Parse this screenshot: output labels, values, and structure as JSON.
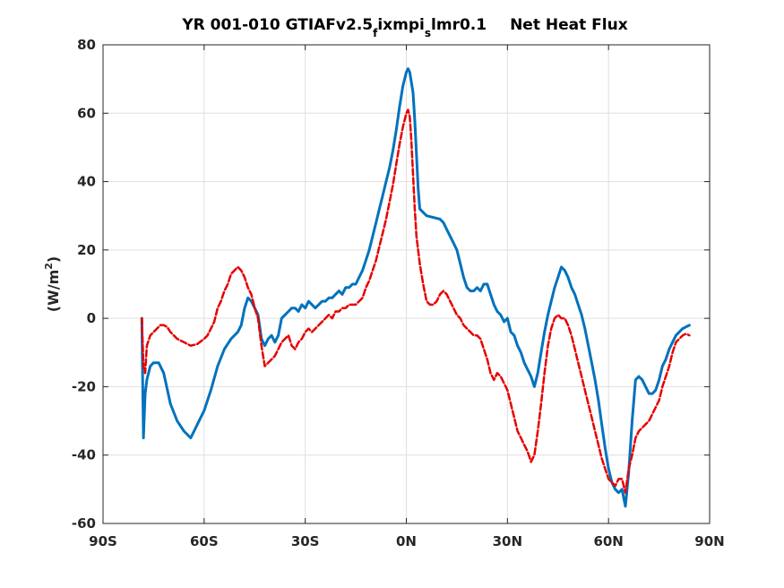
{
  "chart_data": {
    "type": "line",
    "title_parts": {
      "a": "YR 001-010 GTIAFv2.5",
      "sub1": "f",
      "b": "ixmpi",
      "sub2": "s",
      "c": "lmr0.1",
      "d": "Net Heat Flux"
    },
    "ylabel": "(W/m",
    "ylabel_sup": "2",
    "ylabel_close": ")",
    "xlim": [
      -90,
      90
    ],
    "ylim": [
      -60,
      80
    ],
    "grid": true,
    "x_ticks": [
      {
        "value": -90,
        "label": "90S"
      },
      {
        "value": -60,
        "label": "60S"
      },
      {
        "value": -30,
        "label": "30S"
      },
      {
        "value": 0,
        "label": "0N"
      },
      {
        "value": 30,
        "label": "30N"
      },
      {
        "value": 60,
        "label": "60N"
      },
      {
        "value": 90,
        "label": "90N"
      }
    ],
    "y_ticks": [
      {
        "value": -60,
        "label": "-60"
      },
      {
        "value": -40,
        "label": "-40"
      },
      {
        "value": -20,
        "label": "-20"
      },
      {
        "value": 0,
        "label": "0"
      },
      {
        "value": 20,
        "label": "20"
      },
      {
        "value": 40,
        "label": "40"
      },
      {
        "value": 60,
        "label": "60"
      },
      {
        "value": 80,
        "label": "80"
      }
    ],
    "series": [
      {
        "color": "#0072bd",
        "style": "solid",
        "points": [
          [
            -78.5,
            0
          ],
          [
            -78,
            -35
          ],
          [
            -77.5,
            -22
          ],
          [
            -77,
            -18
          ],
          [
            -76,
            -14
          ],
          [
            -75,
            -13
          ],
          [
            -73.5,
            -13
          ],
          [
            -72,
            -16
          ],
          [
            -70,
            -25
          ],
          [
            -68,
            -30
          ],
          [
            -66,
            -33
          ],
          [
            -64,
            -35
          ],
          [
            -63,
            -33
          ],
          [
            -62,
            -31
          ],
          [
            -60,
            -27
          ],
          [
            -58,
            -21
          ],
          [
            -56,
            -14
          ],
          [
            -54,
            -9
          ],
          [
            -52,
            -6
          ],
          [
            -50,
            -4
          ],
          [
            -49,
            -2
          ],
          [
            -48,
            3
          ],
          [
            -47,
            6
          ],
          [
            -46,
            5
          ],
          [
            -45,
            3
          ],
          [
            -44,
            1
          ],
          [
            -43,
            -6
          ],
          [
            -42,
            -8
          ],
          [
            -41,
            -6
          ],
          [
            -40,
            -5
          ],
          [
            -39,
            -7
          ],
          [
            -38,
            -5
          ],
          [
            -37,
            0
          ],
          [
            -36,
            1
          ],
          [
            -35,
            2
          ],
          [
            -34,
            3
          ],
          [
            -33,
            3
          ],
          [
            -32,
            2
          ],
          [
            -31,
            4
          ],
          [
            -30,
            3
          ],
          [
            -29,
            5
          ],
          [
            -28,
            4
          ],
          [
            -27,
            3
          ],
          [
            -26,
            4
          ],
          [
            -25,
            5
          ],
          [
            -24,
            5
          ],
          [
            -23,
            6
          ],
          [
            -22,
            6
          ],
          [
            -21,
            7
          ],
          [
            -20,
            8
          ],
          [
            -19,
            7
          ],
          [
            -18,
            9
          ],
          [
            -17,
            9
          ],
          [
            -16,
            10
          ],
          [
            -15,
            10
          ],
          [
            -14,
            12
          ],
          [
            -13,
            14
          ],
          [
            -12,
            17
          ],
          [
            -11,
            20
          ],
          [
            -10,
            24
          ],
          [
            -9,
            28
          ],
          [
            -8,
            32
          ],
          [
            -7,
            36
          ],
          [
            -6,
            40
          ],
          [
            -5,
            44
          ],
          [
            -4,
            49
          ],
          [
            -3,
            55
          ],
          [
            -2,
            62
          ],
          [
            -1,
            68
          ],
          [
            0,
            72
          ],
          [
            0.5,
            73
          ],
          [
            1,
            72
          ],
          [
            2,
            66
          ],
          [
            2.5,
            58
          ],
          [
            3,
            48
          ],
          [
            3.5,
            38
          ],
          [
            4,
            32
          ],
          [
            5,
            31
          ],
          [
            6,
            30
          ],
          [
            8,
            29.5
          ],
          [
            10,
            29
          ],
          [
            11,
            28
          ],
          [
            12,
            26
          ],
          [
            13,
            24
          ],
          [
            14,
            22
          ],
          [
            15,
            20
          ],
          [
            16,
            16
          ],
          [
            17,
            12
          ],
          [
            18,
            9
          ],
          [
            19,
            8
          ],
          [
            20,
            8
          ],
          [
            21,
            9
          ],
          [
            22,
            8
          ],
          [
            23,
            10
          ],
          [
            24,
            10
          ],
          [
            25,
            7
          ],
          [
            26,
            4
          ],
          [
            27,
            2
          ],
          [
            28,
            1
          ],
          [
            29,
            -1
          ],
          [
            30,
            0
          ],
          [
            31,
            -4
          ],
          [
            32,
            -5
          ],
          [
            33,
            -8
          ],
          [
            34,
            -10
          ],
          [
            35,
            -13
          ],
          [
            36,
            -15
          ],
          [
            37,
            -17
          ],
          [
            38,
            -20
          ],
          [
            39,
            -16
          ],
          [
            40,
            -10
          ],
          [
            41,
            -4
          ],
          [
            42,
            1
          ],
          [
            43,
            5
          ],
          [
            44,
            9
          ],
          [
            45,
            12
          ],
          [
            46,
            15
          ],
          [
            47,
            14
          ],
          [
            48,
            12
          ],
          [
            49,
            9
          ],
          [
            50,
            7
          ],
          [
            51,
            4
          ],
          [
            52,
            1
          ],
          [
            53,
            -3
          ],
          [
            54,
            -8
          ],
          [
            55,
            -13
          ],
          [
            56,
            -18
          ],
          [
            57,
            -24
          ],
          [
            58,
            -31
          ],
          [
            59,
            -38
          ],
          [
            60,
            -44
          ],
          [
            61,
            -48
          ],
          [
            62,
            -50
          ],
          [
            63,
            -51
          ],
          [
            64,
            -50
          ],
          [
            65,
            -55
          ],
          [
            66,
            -45
          ],
          [
            67,
            -30
          ],
          [
            68,
            -18
          ],
          [
            69,
            -17
          ],
          [
            70,
            -18
          ],
          [
            71,
            -20
          ],
          [
            72,
            -22
          ],
          [
            73,
            -22
          ],
          [
            74,
            -21
          ],
          [
            75,
            -18
          ],
          [
            76,
            -14
          ],
          [
            77,
            -12
          ],
          [
            78,
            -9
          ],
          [
            79,
            -7
          ],
          [
            80,
            -5
          ],
          [
            81,
            -4
          ],
          [
            82,
            -3
          ],
          [
            83,
            -2.5
          ],
          [
            84,
            -2
          ]
        ]
      },
      {
        "color": "#e60000",
        "style": "dashed",
        "points": [
          [
            -78.5,
            0
          ],
          [
            -78,
            -14
          ],
          [
            -77.5,
            -16
          ],
          [
            -77,
            -8
          ],
          [
            -76,
            -5
          ],
          [
            -75,
            -4
          ],
          [
            -74,
            -3
          ],
          [
            -73,
            -2
          ],
          [
            -72,
            -2
          ],
          [
            -71,
            -2.5
          ],
          [
            -70,
            -4
          ],
          [
            -68,
            -6
          ],
          [
            -66,
            -7
          ],
          [
            -64,
            -8
          ],
          [
            -62,
            -7.5
          ],
          [
            -60,
            -6
          ],
          [
            -59,
            -5
          ],
          [
            -58,
            -3
          ],
          [
            -57,
            -1
          ],
          [
            -56,
            3
          ],
          [
            -55,
            5
          ],
          [
            -54,
            8
          ],
          [
            -53,
            10
          ],
          [
            -52,
            13
          ],
          [
            -51,
            14
          ],
          [
            -50,
            15
          ],
          [
            -49,
            14
          ],
          [
            -48,
            12
          ],
          [
            -47,
            9
          ],
          [
            -46,
            7
          ],
          [
            -45,
            3
          ],
          [
            -44,
            0
          ],
          [
            -43,
            -8
          ],
          [
            -42,
            -14
          ],
          [
            -41,
            -13
          ],
          [
            -40,
            -12
          ],
          [
            -39,
            -11
          ],
          [
            -38,
            -9
          ],
          [
            -37,
            -7
          ],
          [
            -36,
            -6
          ],
          [
            -35,
            -5
          ],
          [
            -34,
            -8
          ],
          [
            -33,
            -9
          ],
          [
            -32,
            -7
          ],
          [
            -31,
            -6
          ],
          [
            -30,
            -4
          ],
          [
            -29,
            -3
          ],
          [
            -28,
            -4
          ],
          [
            -27,
            -3
          ],
          [
            -26,
            -2
          ],
          [
            -25,
            -1
          ],
          [
            -24,
            0
          ],
          [
            -23,
            1
          ],
          [
            -22,
            0
          ],
          [
            -21,
            2
          ],
          [
            -20,
            2
          ],
          [
            -19,
            3
          ],
          [
            -18,
            3
          ],
          [
            -17,
            4
          ],
          [
            -16,
            4
          ],
          [
            -15,
            4
          ],
          [
            -14,
            5
          ],
          [
            -13,
            6
          ],
          [
            -12,
            9
          ],
          [
            -11,
            11
          ],
          [
            -10,
            14
          ],
          [
            -9,
            17
          ],
          [
            -8,
            21
          ],
          [
            -7,
            25
          ],
          [
            -6,
            29
          ],
          [
            -5,
            34
          ],
          [
            -4,
            39
          ],
          [
            -3,
            45
          ],
          [
            -2,
            51
          ],
          [
            -1,
            56
          ],
          [
            0,
            60
          ],
          [
            0.5,
            61
          ],
          [
            1,
            59
          ],
          [
            1.5,
            52
          ],
          [
            2,
            42
          ],
          [
            2.5,
            32
          ],
          [
            3,
            24
          ],
          [
            4,
            16
          ],
          [
            5,
            10
          ],
          [
            6,
            5
          ],
          [
            7,
            4
          ],
          [
            8,
            4
          ],
          [
            9,
            5
          ],
          [
            10,
            7
          ],
          [
            11,
            8
          ],
          [
            12,
            7
          ],
          [
            13,
            5
          ],
          [
            14,
            3
          ],
          [
            15,
            1
          ],
          [
            16,
            0
          ],
          [
            17,
            -2
          ],
          [
            18,
            -3
          ],
          [
            19,
            -4
          ],
          [
            20,
            -5
          ],
          [
            21,
            -5
          ],
          [
            22,
            -6
          ],
          [
            23,
            -9
          ],
          [
            24,
            -12
          ],
          [
            25,
            -16
          ],
          [
            26,
            -18
          ],
          [
            27,
            -16
          ],
          [
            28,
            -17
          ],
          [
            29,
            -19
          ],
          [
            30,
            -21
          ],
          [
            31,
            -25
          ],
          [
            32,
            -29
          ],
          [
            33,
            -33
          ],
          [
            34,
            -35
          ],
          [
            35,
            -37
          ],
          [
            36,
            -39
          ],
          [
            37,
            -42
          ],
          [
            38,
            -40
          ],
          [
            39,
            -33
          ],
          [
            40,
            -25
          ],
          [
            41,
            -16
          ],
          [
            42,
            -8
          ],
          [
            43,
            -3
          ],
          [
            44,
            0
          ],
          [
            45,
            1
          ],
          [
            46,
            0
          ],
          [
            47,
            0
          ],
          [
            48,
            -2
          ],
          [
            49,
            -5
          ],
          [
            50,
            -9
          ],
          [
            51,
            -13
          ],
          [
            52,
            -17
          ],
          [
            53,
            -21
          ],
          [
            54,
            -25
          ],
          [
            55,
            -29
          ],
          [
            56,
            -33
          ],
          [
            57,
            -37
          ],
          [
            58,
            -41
          ],
          [
            59,
            -44
          ],
          [
            60,
            -47
          ],
          [
            61,
            -48
          ],
          [
            62,
            -49
          ],
          [
            63,
            -47
          ],
          [
            64,
            -47
          ],
          [
            65,
            -51
          ],
          [
            66,
            -44
          ],
          [
            67,
            -40
          ],
          [
            68,
            -35
          ],
          [
            69,
            -33
          ],
          [
            70,
            -32
          ],
          [
            71,
            -31
          ],
          [
            72,
            -30
          ],
          [
            73,
            -28
          ],
          [
            74,
            -26
          ],
          [
            75,
            -24
          ],
          [
            76,
            -20
          ],
          [
            77,
            -17
          ],
          [
            78,
            -14
          ],
          [
            79,
            -10
          ],
          [
            80,
            -7
          ],
          [
            81,
            -6
          ],
          [
            82,
            -5
          ],
          [
            83,
            -4.5
          ],
          [
            84,
            -5
          ]
        ]
      }
    ]
  }
}
